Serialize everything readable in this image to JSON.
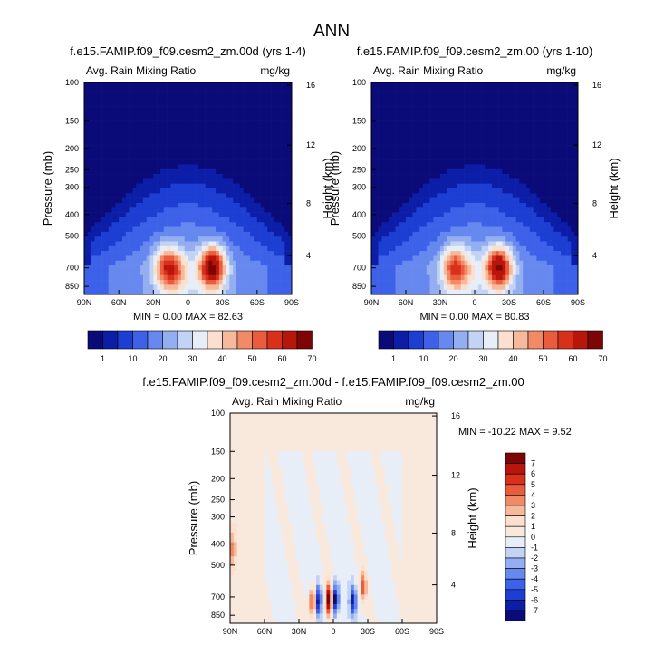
{
  "figure": {
    "title": "ANN"
  },
  "chart_data": [
    {
      "type": "heatmap",
      "title": "f.e15.FAMIP.f09_f09.cesm2_zm.00d (yrs 1-4)",
      "left_label": "Avg. Rain Mixing Ratio",
      "right_label": "mg/kg",
      "ylabel": "Pressure (mb)",
      "y2label": "Height (km)",
      "xticks": [
        "90N",
        "60N",
        "30N",
        "0",
        "30S",
        "60S",
        "90S"
      ],
      "yticks": [
        "100",
        "150",
        "200",
        "250",
        "300",
        "400",
        "500",
        "700",
        "850"
      ],
      "y2ticks": [
        "16",
        "12",
        "8",
        "4"
      ],
      "ylog": true,
      "stats": "MIN =  0.00  MAX = 82.63",
      "peaks": [
        {
          "lat": -21,
          "p": 700,
          "value": 72
        },
        {
          "lat": 18,
          "p": 700,
          "value": 55
        },
        {
          "lat": 8,
          "p": 750,
          "value": 32
        }
      ]
    },
    {
      "type": "heatmap",
      "title": "f.e15.FAMIP.f09_f09.cesm2_zm.00 (yrs 1-10)",
      "left_label": "Avg. Rain Mixing Ratio",
      "right_label": "mg/kg",
      "ylabel": "Pressure (mb)",
      "y2label": "Height (km)",
      "xticks": [
        "90N",
        "60N",
        "30N",
        "0",
        "30S",
        "60S",
        "90S"
      ],
      "yticks": [
        "100",
        "150",
        "200",
        "250",
        "300",
        "400",
        "500",
        "700",
        "850"
      ],
      "y2ticks": [
        "16",
        "12",
        "8",
        "4"
      ],
      "ylog": true,
      "stats": "MIN =  0.00  MAX = 80.83",
      "peaks": [
        {
          "lat": -21,
          "p": 700,
          "value": 70
        },
        {
          "lat": 18,
          "p": 700,
          "value": 52
        },
        {
          "lat": 8,
          "p": 740,
          "value": 30
        }
      ]
    },
    {
      "type": "heatmap",
      "title": "f.e15.FAMIP.f09_f09.cesm2_zm.00d - f.e15.FAMIP.f09_f09.cesm2_zm.00",
      "left_label": "Avg. Rain Mixing Ratio",
      "right_label": "mg/kg",
      "ylabel": "Pressure (mb)",
      "y2label": "Height (km)",
      "xticks": [
        "90N",
        "60N",
        "30N",
        "0",
        "30S",
        "60S",
        "90S"
      ],
      "yticks": [
        "100",
        "150",
        "200",
        "250",
        "300",
        "400",
        "500",
        "700",
        "850"
      ],
      "y2ticks": [
        "16",
        "12",
        "8",
        "4"
      ],
      "ylog": true,
      "stats": "MIN = -10.22  MAX =   9.52",
      "features": [
        {
          "lat": 4,
          "p": 720,
          "value": 9
        },
        {
          "lat": -2,
          "p": 720,
          "value": -8
        },
        {
          "lat": 13,
          "p": 730,
          "value": -6
        },
        {
          "lat": 18,
          "p": 740,
          "value": 6
        },
        {
          "lat": -17,
          "p": 730,
          "value": -6
        },
        {
          "lat": -26,
          "p": 620,
          "value": 5
        },
        {
          "lat": 88,
          "p": 420,
          "value": 3
        }
      ]
    }
  ],
  "colorbars": {
    "abs": {
      "labels": [
        "1",
        "10",
        "20",
        "30",
        "40",
        "50",
        "60",
        "70"
      ],
      "colors": [
        "#0a0a78",
        "#0c1ea8",
        "#1c3ed2",
        "#3d61e8",
        "#6688ef",
        "#94aef2",
        "#c3d3f4",
        "#e8eef7",
        "#fbdfcf",
        "#f7b99c",
        "#f28a65",
        "#ea5c3d",
        "#d9301c",
        "#b8150b",
        "#7d0503"
      ]
    },
    "diff": {
      "labels": [
        "7",
        "6",
        "5",
        "4",
        "3",
        "2",
        "1",
        "0",
        "-1",
        "-2",
        "-3",
        "-4",
        "-5",
        "-6",
        "-7"
      ],
      "colors": [
        "#7d0503",
        "#b8150b",
        "#d9301c",
        "#ea5c3d",
        "#f28a65",
        "#f7b99c",
        "#fbdfcf",
        "#f9e8dc",
        "#e8eef7",
        "#c3d3f4",
        "#94aef2",
        "#6688ef",
        "#3d61e8",
        "#1c3ed2",
        "#0c1ea8",
        "#0a0a78"
      ]
    }
  }
}
